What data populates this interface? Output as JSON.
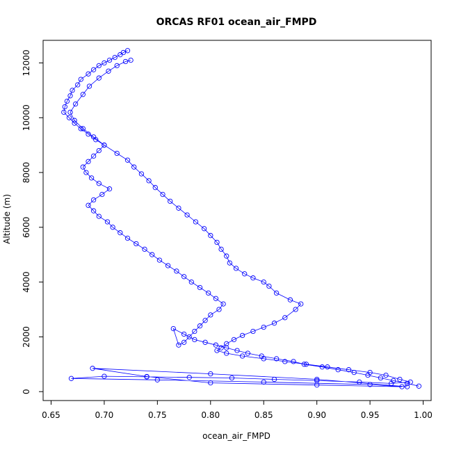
{
  "chart_data": {
    "type": "line",
    "title": "ORCAS RF01 ocean_air_FMPD",
    "xlabel": "ocean_air_FMPD",
    "ylabel": "Altitude (m)",
    "xlim": [
      0.65,
      1.0
    ],
    "ylim": [
      0,
      12500
    ],
    "xticks": [
      0.65,
      0.7,
      0.75,
      0.8,
      0.85,
      0.9,
      0.95,
      1.0
    ],
    "xtick_labels": [
      "0.65",
      "0.70",
      "0.75",
      "0.80",
      "0.85",
      "0.90",
      "0.95",
      "1.00"
    ],
    "yticks": [
      0,
      2000,
      4000,
      6000,
      8000,
      10000,
      12000
    ],
    "ytick_labels": [
      "0",
      "2000",
      "4000",
      "6000",
      "8000",
      "10000",
      "12000"
    ],
    "grid": false,
    "marker": "open-circle",
    "color": "#0000ff",
    "series": [
      {
        "x": [
          0.722,
          0.718,
          0.715,
          0.71,
          0.705,
          0.7,
          0.695,
          0.69,
          0.685,
          0.678,
          0.675,
          0.67,
          0.668,
          0.665,
          0.663,
          0.662,
          0.667,
          0.672,
          0.678,
          0.685,
          0.692,
          0.7,
          0.695,
          0.69,
          0.685,
          0.68,
          0.683,
          0.688,
          0.695,
          0.705,
          0.698,
          0.69,
          0.685,
          0.69,
          0.695,
          0.703,
          0.708,
          0.715,
          0.722,
          0.73,
          0.738,
          0.745,
          0.752,
          0.76,
          0.768,
          0.775,
          0.782,
          0.79,
          0.798,
          0.805,
          0.812,
          0.808,
          0.8,
          0.795,
          0.79,
          0.785,
          0.78,
          0.775,
          0.77,
          0.765,
          0.775,
          0.785,
          0.795,
          0.805,
          0.815,
          0.825,
          0.835,
          0.848,
          0.862,
          0.878,
          0.888,
          0.905,
          0.92,
          0.935,
          0.948,
          0.96,
          0.972,
          0.985,
          0.996
        ],
        "y": [
          12450,
          12380,
          12300,
          12200,
          12100,
          12000,
          11900,
          11750,
          11600,
          11400,
          11200,
          11000,
          10800,
          10600,
          10400,
          10200,
          10000,
          9800,
          9600,
          9400,
          9200,
          9000,
          8800,
          8600,
          8400,
          8200,
          8000,
          7800,
          7600,
          7400,
          7200,
          7000,
          6800,
          6600,
          6400,
          6200,
          6000,
          5800,
          5600,
          5400,
          5200,
          5000,
          4800,
          4600,
          4400,
          4200,
          4000,
          3800,
          3600,
          3400,
          3200,
          3000,
          2800,
          2600,
          2400,
          2200,
          2000,
          1800,
          1700,
          2300,
          2100,
          1900,
          1800,
          1700,
          1600,
          1500,
          1400,
          1300,
          1200,
          1100,
          1000,
          900,
          800,
          700,
          600,
          500,
          400,
          300,
          200
        ]
      },
      {
        "x": [
          0.725,
          0.72,
          0.712,
          0.704,
          0.695,
          0.686,
          0.68,
          0.673,
          0.668,
          0.672,
          0.68,
          0.69,
          0.7,
          0.712,
          0.722,
          0.728,
          0.735,
          0.742,
          0.748,
          0.755,
          0.762,
          0.77,
          0.778,
          0.786,
          0.794,
          0.8,
          0.806,
          0.81,
          0.815,
          0.818,
          0.824,
          0.832,
          0.84,
          0.85,
          0.855,
          0.862,
          0.875,
          0.885,
          0.88,
          0.87,
          0.86,
          0.85,
          0.84,
          0.83,
          0.822,
          0.815,
          0.81,
          0.806,
          0.815,
          0.83,
          0.85,
          0.87,
          0.89,
          0.91,
          0.93,
          0.95,
          0.965,
          0.978,
          0.988,
          0.97,
          0.94,
          0.9,
          0.86,
          0.82,
          0.78,
          0.74,
          0.7,
          0.669,
          0.75,
          0.85,
          0.95,
          0.98,
          0.9,
          0.8,
          0.74,
          0.689,
          0.8,
          0.9,
          0.985
        ],
        "y": [
          12100,
          12050,
          11900,
          11700,
          11450,
          11150,
          10850,
          10500,
          10200,
          9900,
          9600,
          9300,
          9000,
          8700,
          8450,
          8200,
          7950,
          7700,
          7450,
          7200,
          6950,
          6700,
          6450,
          6200,
          5950,
          5700,
          5450,
          5200,
          4950,
          4700,
          4500,
          4300,
          4150,
          4000,
          3850,
          3600,
          3350,
          3200,
          3000,
          2700,
          2500,
          2350,
          2200,
          2050,
          1900,
          1750,
          1600,
          1500,
          1400,
          1300,
          1200,
          1100,
          1000,
          900,
          800,
          700,
          600,
          450,
          350,
          300,
          350,
          400,
          450,
          500,
          520,
          540,
          560,
          480,
          430,
          350,
          260,
          180,
          240,
          320,
          550,
          850,
          650,
          450,
          180
        ]
      }
    ]
  }
}
